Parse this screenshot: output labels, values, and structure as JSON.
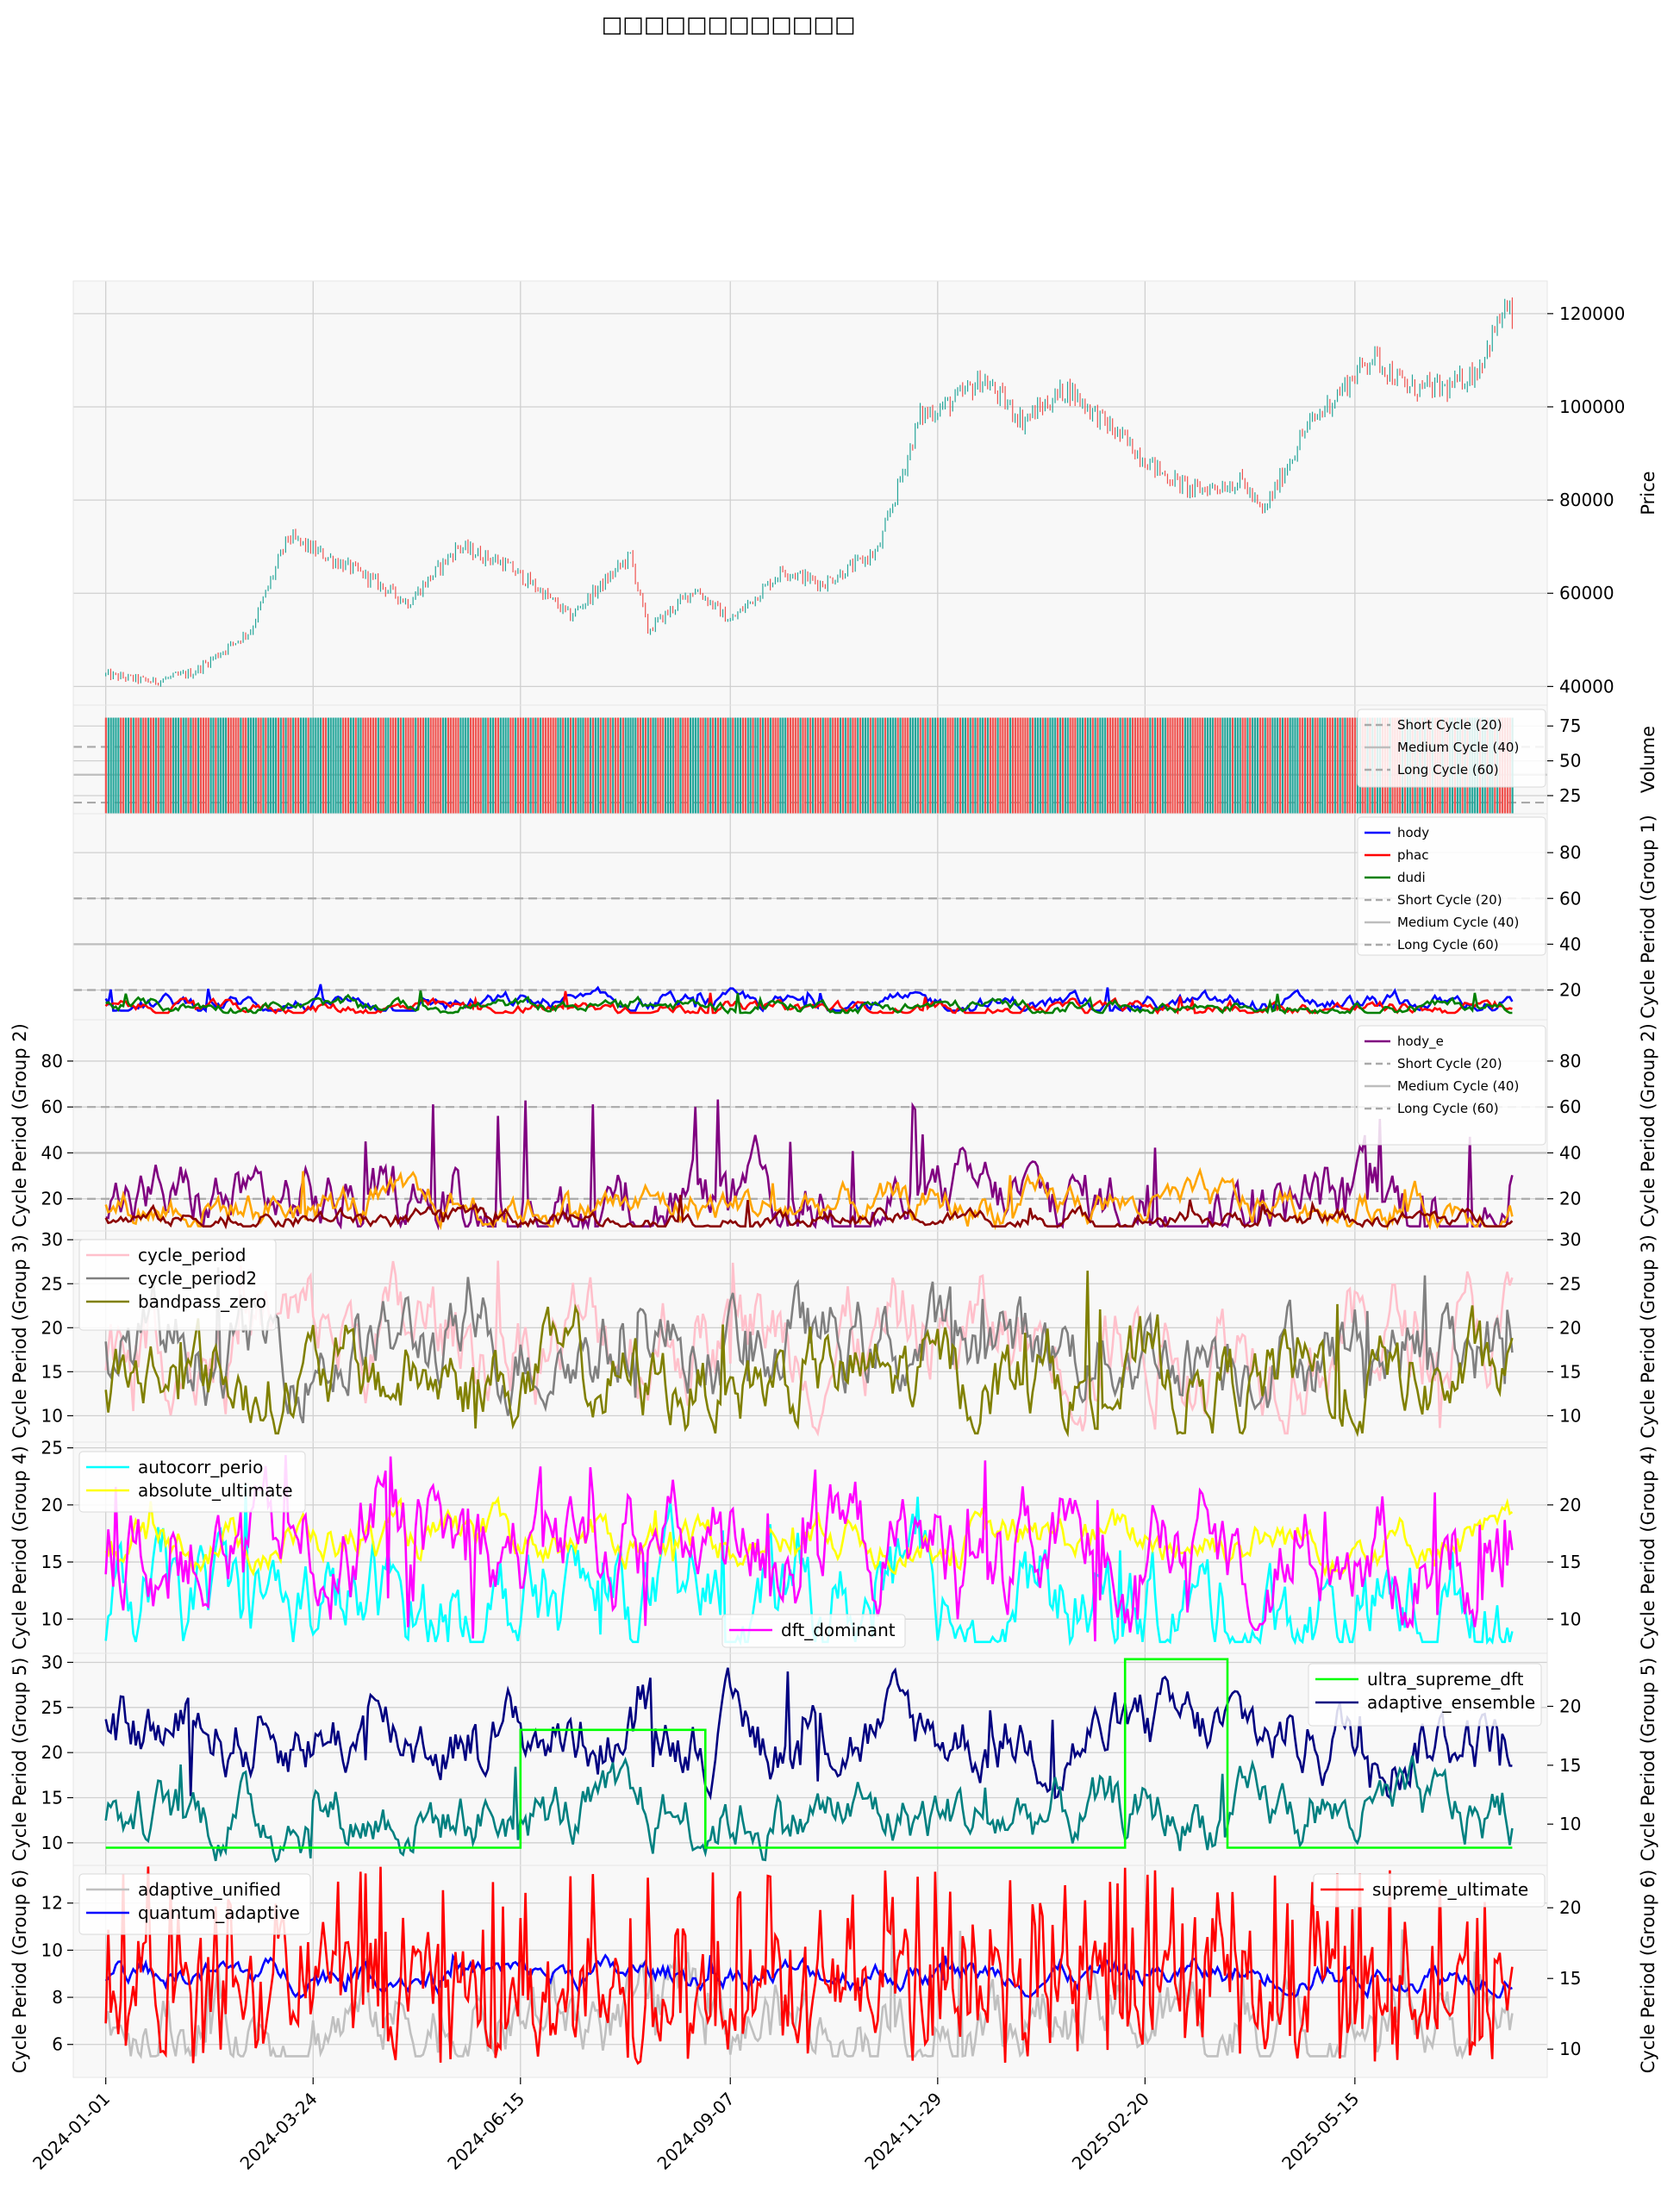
{
  "chart_data": {
    "type": "line",
    "title": "□□□□□□□□□□□□",
    "x_axis": {
      "ticks": [
        "2024-01-01",
        "2024-03-24",
        "2024-06-15",
        "2024-09-07",
        "2024-11-29",
        "2025-02-20",
        "2025-05-15"
      ],
      "range": [
        "2023-12-19",
        "2025-07-31"
      ],
      "data_end": "2025-07-17"
    },
    "panels": [
      {
        "id": "price",
        "type": "candlestick",
        "ylabel": "Price",
        "ylim": [
          36000,
          127000
        ],
        "yticks": [
          40000,
          60000,
          80000,
          100000,
          120000
        ],
        "colors": {
          "up": "#26a69a",
          "down": "#ef5350"
        },
        "anchors": {
          "x": [
            "2024-01-01",
            "2024-01-20",
            "2024-02-05",
            "2024-02-28",
            "2024-03-14",
            "2024-04-13",
            "2024-05-01",
            "2024-05-21",
            "2024-06-08",
            "2024-06-22",
            "2024-07-05",
            "2024-07-29",
            "2024-08-05",
            "2024-08-24",
            "2024-09-07",
            "2024-09-28",
            "2024-10-14",
            "2024-11-05",
            "2024-11-22",
            "2024-12-05",
            "2024-12-17",
            "2025-01-02",
            "2025-01-20",
            "2025-02-03",
            "2025-02-26",
            "2025-03-11",
            "2025-03-31",
            "2025-04-08",
            "2025-04-25",
            "2025-05-22",
            "2025-06-05",
            "2025-06-22",
            "2025-07-03",
            "2025-07-14",
            "2025-07-17"
          ],
          "close": [
            42500,
            41000,
            43000,
            52000,
            72000,
            64000,
            58000,
            70000,
            66500,
            61000,
            55000,
            68000,
            52000,
            61000,
            54000,
            65000,
            62000,
            69000,
            98000,
            101000,
            106000,
            97000,
            104000,
            97000,
            86000,
            82000,
            84000,
            77000,
            95000,
            111000,
            104000,
            104000,
            108000,
            121000,
            119000
          ]
        }
      },
      {
        "id": "volume",
        "type": "bar",
        "ylabel": "Volume",
        "ylim": [
          12,
          90
        ],
        "yticks": [
          25,
          50,
          75
        ],
        "colors": {
          "up": "#26a69a",
          "down": "#ef5350"
        },
        "bar_value": 81,
        "reference_lines": [
          {
            "name": "Short Cycle (20)",
            "value": 20
          },
          {
            "name": "Medium Cycle (40)",
            "value": 40
          },
          {
            "name": "Long Cycle (60)",
            "value": 60
          }
        ]
      },
      {
        "id": "group1",
        "ylabel": "Cycle Period (Group 1)",
        "ylim": [
          7,
          97
        ],
        "yticks": [
          20,
          40,
          60,
          80
        ],
        "series": [
          {
            "name": "hody",
            "color": "#0000ff",
            "range": [
              11,
              24
            ],
            "base": 14
          },
          {
            "name": "phac",
            "color": "#ff0000",
            "range": [
              10,
              20
            ],
            "base": 12
          },
          {
            "name": "dudi",
            "color": "#008000",
            "range": [
              10,
              20
            ],
            "base": 13
          }
        ],
        "reference_lines": [
          {
            "name": "Short Cycle (20)",
            "value": 20
          },
          {
            "name": "Medium Cycle (40)",
            "value": 40
          },
          {
            "name": "Long Cycle (60)",
            "value": 60
          }
        ]
      },
      {
        "id": "group2",
        "ylabel": "Cycle Period (Group 2)",
        "ylim": [
          6,
          98
        ],
        "yticks": [
          20,
          40,
          60,
          80
        ],
        "series": [
          {
            "name": "hody_e",
            "color": "#800080",
            "range": [
              8,
              65
            ],
            "base": 18
          },
          {
            "name": "",
            "color": "#ffa500",
            "range": [
              8,
              38
            ],
            "base": 17
          },
          {
            "name": "",
            "color": "#8b0000",
            "range": [
              8,
              22
            ],
            "base": 11
          }
        ],
        "reference_lines": [
          {
            "name": "Short Cycle (20)",
            "value": 20
          },
          {
            "name": "Medium Cycle (40)",
            "value": 40
          },
          {
            "name": "Long Cycle (60)",
            "value": 60
          }
        ],
        "hidden_legend_text": [
          "(40)"
        ]
      },
      {
        "id": "group3",
        "ylabel": "Cycle Period (Group 3)",
        "ylim": [
          7,
          31
        ],
        "yticks": [
          10,
          15,
          20,
          25,
          30
        ],
        "series": [
          {
            "name": "cycle_period",
            "color": "#ffc0cb",
            "range": [
              8,
              30
            ],
            "base": 19
          },
          {
            "name": "cycle_period2",
            "color": "#808080",
            "range": [
              8,
              27
            ],
            "base": 18
          },
          {
            "name": "bandpass_zero",
            "color": "#808000",
            "range": [
              8,
              27
            ],
            "base": 14
          }
        ]
      },
      {
        "id": "group4",
        "ylabel": "Cycle Period (Group 4)",
        "ylim": [
          7,
          25.5
        ],
        "yticks": [
          10,
          15,
          20,
          25
        ],
        "right_ylim": [
          7,
          25.5
        ],
        "right_yticks": [
          10,
          15,
          20
        ],
        "series": [
          {
            "name": "autocorr_perio",
            "color": "#00ffff",
            "range": [
              8,
              25
            ],
            "base": 11
          },
          {
            "name": "absolute_ultimate",
            "color": "#ffff00",
            "range": [
              14,
              21
            ],
            "base": 17
          },
          {
            "name": "dft_dominant",
            "color": "#ff00ff",
            "range": [
              8,
              25
            ],
            "base": 16
          }
        ]
      },
      {
        "id": "group5",
        "ylabel": "Cycle Period (Group 5)",
        "ylim": [
          7.5,
          31
        ],
        "yticks": [
          10,
          15,
          20,
          25,
          30
        ],
        "right_ylim": [
          6.5,
          24.5
        ],
        "right_yticks": [
          10,
          15,
          20
        ],
        "series": [
          {
            "name": "",
            "color": "#000080",
            "range": [
              15,
              30
            ],
            "base": 22
          },
          {
            "name": "",
            "color": "#008080",
            "range": [
              8,
              21
            ],
            "base": 13
          },
          {
            "name": "ultra_supreme_dft",
            "color": "#00ff00",
            "axis": "right",
            "steps": [
              {
                "from": "2024-01-01",
                "value": 8
              },
              {
                "from": "2024-06-15",
                "value": 18
              },
              {
                "from": "2024-08-28",
                "value": 8
              },
              {
                "from": "2025-02-12",
                "value": 24
              },
              {
                "from": "2025-03-25",
                "value": 8
              }
            ]
          },
          {
            "name": "adaptive_ensemble",
            "color": "#000080",
            "axis": "right",
            "legend_only": true
          }
        ]
      },
      {
        "id": "group6",
        "ylabel": "Cycle Period (Group 6)",
        "ylim": [
          4.6,
          13.6
        ],
        "yticks": [
          6,
          8,
          10,
          12
        ],
        "right_ylim": [
          8,
          23
        ],
        "right_yticks": [
          10,
          15,
          20
        ],
        "series": [
          {
            "name": "adaptive_unified",
            "color": "#c0c0c0",
            "range": [
              5.5,
              12
            ],
            "base": 7
          },
          {
            "name": "quantum_adaptive",
            "color": "#0000ff",
            "range": [
              8,
              10
            ],
            "base": 9
          },
          {
            "name": "supreme_ultimate",
            "color": "#ff0000",
            "axis": "right",
            "range": [
              9,
              23
            ],
            "base": 14
          }
        ]
      }
    ]
  }
}
